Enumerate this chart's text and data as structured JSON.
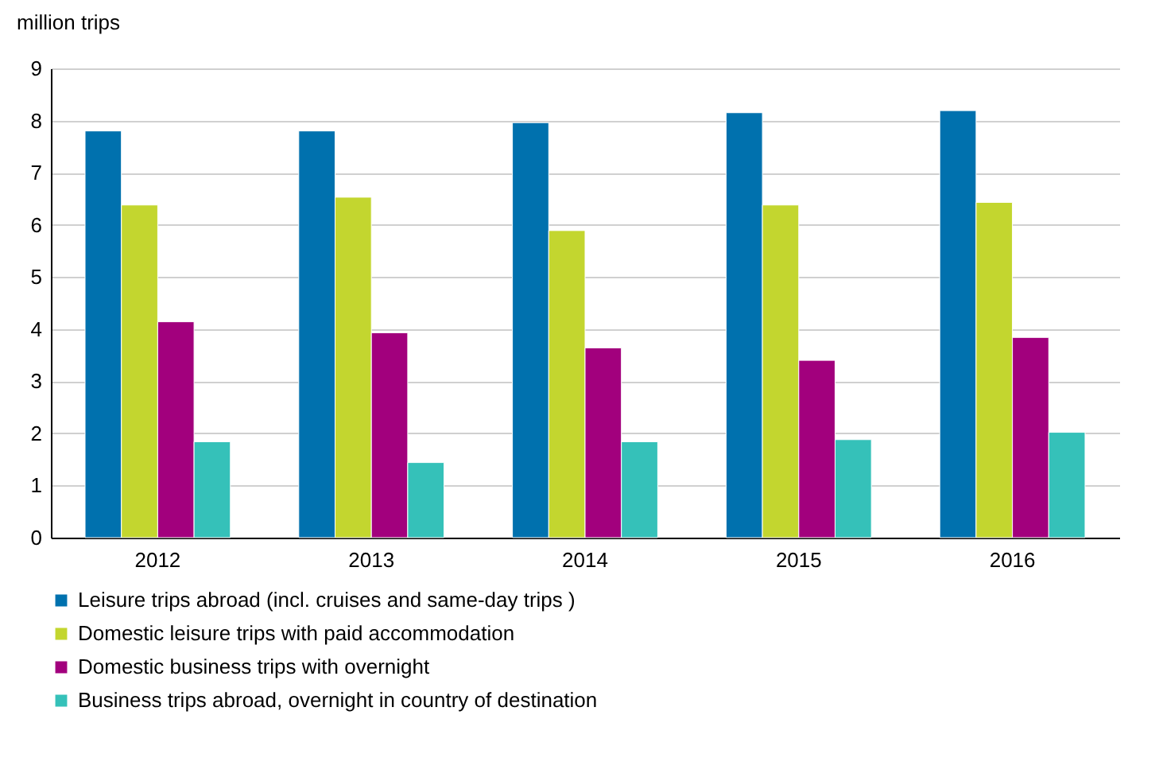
{
  "chart_data": {
    "type": "bar",
    "ylabel": "million trips",
    "categories": [
      "2012",
      "2013",
      "2014",
      "2015",
      "2016"
    ],
    "series": [
      {
        "name": "Leisure trips abroad (incl. cruises and same-day trips )",
        "color": "#0071ae",
        "values": [
          7.8,
          7.8,
          7.96,
          8.15,
          8.19
        ]
      },
      {
        "name": "Domestic leisure trips with paid accommodation",
        "color": "#c3d62f",
        "values": [
          6.38,
          6.53,
          5.89,
          6.38,
          6.43
        ]
      },
      {
        "name": "Domestic business trips with overnight",
        "color": "#a2007d",
        "values": [
          4.14,
          3.93,
          3.64,
          3.4,
          3.84
        ]
      },
      {
        "name": "Business trips abroad, overnight in country of destination",
        "color": "#35c1b9",
        "values": [
          1.84,
          1.44,
          1.84,
          1.88,
          2.02
        ]
      }
    ],
    "ylim": [
      0,
      9
    ],
    "yticks": [
      0,
      1,
      2,
      3,
      4,
      5,
      6,
      7,
      8,
      9
    ],
    "grid": "y",
    "legend": "bottom"
  }
}
